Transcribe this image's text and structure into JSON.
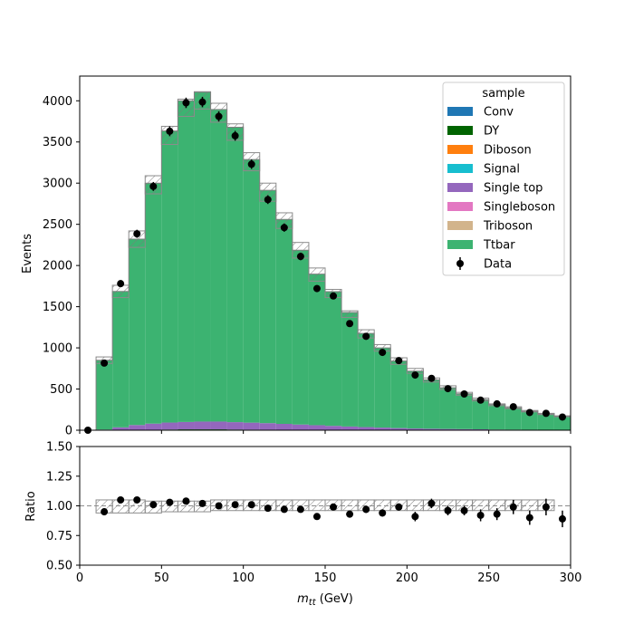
{
  "chart_data": [
    {
      "type": "bar",
      "panel": "main",
      "stacked": true,
      "histogram": true,
      "xlabel": "m_tt (GeV)",
      "ylabel": "Events",
      "xlim": [
        0,
        300
      ],
      "ylim": [
        0,
        4300
      ],
      "yticks": [
        0,
        500,
        1000,
        1500,
        2000,
        2500,
        3000,
        3500,
        4000
      ],
      "xticks": [
        0,
        50,
        100,
        150,
        200,
        250,
        300
      ],
      "bin_edges": [
        0,
        10,
        20,
        30,
        40,
        50,
        60,
        70,
        80,
        90,
        100,
        110,
        120,
        130,
        140,
        150,
        160,
        170,
        180,
        190,
        200,
        210,
        220,
        230,
        240,
        250,
        260,
        270,
        280,
        290,
        300
      ],
      "legend": {
        "title": "sample",
        "placement": "upper-right"
      },
      "series": [
        {
          "name": "Conv",
          "color": "#1f77b4",
          "values": [
            0,
            0,
            0,
            0,
            0,
            0,
            0,
            0,
            0,
            0,
            0,
            0,
            0,
            0,
            0,
            0,
            0,
            0,
            0,
            0,
            0,
            0,
            0,
            0,
            0,
            0,
            0,
            0,
            0,
            0
          ]
        },
        {
          "name": "DY",
          "color": "#006400",
          "values": [
            0,
            0,
            0,
            3,
            5,
            8,
            10,
            10,
            10,
            8,
            7,
            6,
            5,
            4,
            3,
            3,
            2,
            2,
            2,
            1,
            1,
            1,
            1,
            1,
            1,
            0,
            0,
            0,
            0,
            0
          ]
        },
        {
          "name": "Diboson",
          "color": "#ff7f0e",
          "values": [
            0,
            0,
            0,
            0,
            0,
            0,
            0,
            0,
            0,
            0,
            0,
            0,
            0,
            0,
            0,
            0,
            0,
            0,
            0,
            0,
            0,
            0,
            0,
            0,
            0,
            0,
            0,
            0,
            0,
            0
          ]
        },
        {
          "name": "Signal",
          "color": "#17becf",
          "values": [
            0,
            0,
            0,
            0,
            0,
            0,
            0,
            0,
            0,
            0,
            0,
            0,
            0,
            0,
            0,
            0,
            0,
            0,
            0,
            0,
            0,
            0,
            0,
            0,
            0,
            0,
            0,
            0,
            0,
            0
          ]
        },
        {
          "name": "Single top",
          "color": "#9467bd",
          "values": [
            0,
            8,
            35,
            60,
            75,
            85,
            90,
            95,
            95,
            90,
            85,
            80,
            72,
            65,
            58,
            50,
            43,
            36,
            30,
            25,
            20,
            17,
            14,
            12,
            10,
            8,
            7,
            6,
            5,
            4
          ]
        },
        {
          "name": "Singleboson",
          "color": "#e377c2",
          "values": [
            0,
            0,
            0,
            0,
            0,
            0,
            0,
            0,
            0,
            0,
            0,
            0,
            0,
            0,
            0,
            0,
            0,
            0,
            0,
            0,
            0,
            0,
            0,
            0,
            0,
            0,
            0,
            0,
            0,
            0
          ]
        },
        {
          "name": "Triboson",
          "color": "#d2b48c",
          "values": [
            0,
            0,
            0,
            0,
            0,
            0,
            0,
            0,
            0,
            0,
            0,
            0,
            0,
            0,
            0,
            0,
            0,
            0,
            0,
            0,
            0,
            0,
            0,
            0,
            0,
            0,
            0,
            0,
            0,
            0
          ]
        },
        {
          "name": "Ttbar",
          "color": "#3cb371",
          "values": [
            0,
            842,
            1650,
            2257,
            2920,
            3540,
            3900,
            4000,
            3790,
            3580,
            3195,
            2827,
            2482,
            2117,
            1834,
            1630,
            1385,
            1137,
            968,
            814,
            697,
            594,
            500,
            429,
            360,
            302,
            265,
            224,
            193,
            165
          ]
        }
      ],
      "totals": [
        0,
        850,
        1685,
        2320,
        3000,
        3633,
        4000,
        4105,
        3895,
        3678,
        3287,
        2913,
        2559,
        2186,
        1895,
        1683,
        1430,
        1175,
        1000,
        840,
        718,
        612,
        515,
        442,
        371,
        310,
        272,
        230,
        198,
        169
      ],
      "uncertainty_band": {
        "label": "hatched",
        "low": [
          0,
          810,
          1610,
          2220,
          2870,
          3470,
          3810,
          3900,
          3740,
          3520,
          3150,
          2780,
          2450,
          2090,
          1810,
          1610,
          1370,
          1120,
          960,
          800,
          690,
          585,
          495,
          425,
          355,
          297,
          262,
          222,
          190,
          163
        ],
        "high": [
          0,
          890,
          1760,
          2420,
          3090,
          3690,
          4020,
          4110,
          3970,
          3720,
          3370,
          3000,
          2640,
          2280,
          1970,
          1710,
          1450,
          1220,
          1040,
          880,
          750,
          635,
          540,
          460,
          390,
          320,
          285,
          240,
          205,
          175
        ]
      },
      "data_series": {
        "name": "Data",
        "color": "#000000",
        "x": [
          5,
          15,
          25,
          35,
          45,
          55,
          65,
          75,
          85,
          95,
          105,
          115,
          125,
          135,
          145,
          155,
          165,
          175,
          185,
          195,
          205,
          215,
          225,
          235,
          245,
          255,
          265,
          275,
          285,
          295
        ],
        "y": [
          0,
          815,
          1780,
          2385,
          2960,
          3630,
          3975,
          3985,
          3810,
          3575,
          3230,
          2800,
          2460,
          2110,
          1720,
          1630,
          1295,
          1140,
          945,
          845,
          670,
          630,
          505,
          440,
          365,
          320,
          285,
          215,
          205,
          160
        ],
        "yerr": [
          0,
          29,
          42,
          49,
          54,
          60,
          63,
          63,
          62,
          60,
          57,
          53,
          50,
          46,
          41,
          40,
          36,
          34,
          31,
          29,
          26,
          25,
          22,
          21,
          19,
          18,
          17,
          15,
          14,
          13
        ]
      }
    },
    {
      "type": "scatter",
      "panel": "ratio",
      "xlabel": "m_tt (GeV)",
      "ylabel": "Ratio",
      "xlim": [
        0,
        300
      ],
      "ylim": [
        0.5,
        1.5
      ],
      "yticks": [
        "0.50",
        "0.75",
        "1.00",
        "1.25",
        "1.50"
      ],
      "xticks": [
        "0",
        "50",
        "100",
        "150",
        "200",
        "250",
        "300"
      ],
      "reference_line": 1.0,
      "x": [
        15,
        25,
        35,
        45,
        55,
        65,
        75,
        85,
        95,
        105,
        115,
        125,
        135,
        145,
        155,
        165,
        175,
        185,
        195,
        205,
        215,
        225,
        235,
        245,
        255,
        265,
        275,
        285,
        295
      ],
      "y": [
        0.95,
        1.05,
        1.05,
        1.01,
        1.03,
        1.04,
        1.02,
        1.0,
        1.01,
        1.01,
        0.98,
        0.97,
        0.97,
        0.91,
        0.99,
        0.93,
        0.97,
        0.94,
        0.99,
        0.91,
        1.02,
        0.96,
        0.96,
        0.92,
        0.93,
        0.99,
        0.9,
        0.99,
        0.89
      ],
      "yerr": [
        0.03,
        0.02,
        0.02,
        0.02,
        0.02,
        0.02,
        0.02,
        0.02,
        0.02,
        0.02,
        0.02,
        0.02,
        0.02,
        0.02,
        0.02,
        0.03,
        0.03,
        0.03,
        0.03,
        0.04,
        0.04,
        0.04,
        0.04,
        0.05,
        0.05,
        0.06,
        0.06,
        0.07,
        0.07
      ],
      "band": {
        "x_range": [
          10,
          290
        ],
        "low": [
          0.94,
          0.94,
          0.94,
          0.94,
          0.95,
          0.95,
          0.95,
          0.96,
          0.96,
          0.96,
          0.96,
          0.96,
          0.96,
          0.96,
          0.96,
          0.96,
          0.96,
          0.96,
          0.96,
          0.96,
          0.96,
          0.96,
          0.96,
          0.96,
          0.96,
          0.96,
          0.96,
          0.96
        ],
        "high": [
          1.05,
          1.05,
          1.05,
          1.04,
          1.04,
          1.04,
          1.04,
          1.05,
          1.05,
          1.05,
          1.05,
          1.05,
          1.05,
          1.05,
          1.05,
          1.05,
          1.05,
          1.05,
          1.05,
          1.05,
          1.05,
          1.05,
          1.05,
          1.05,
          1.05,
          1.05,
          1.05,
          1.05
        ]
      }
    }
  ]
}
